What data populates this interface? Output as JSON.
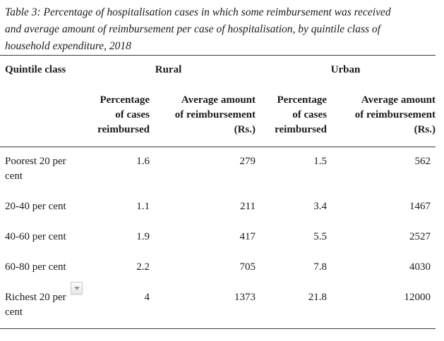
{
  "caption": {
    "lines": [
      "Table 3: Percentage of hospitalisation cases in which some reimbursement was received",
      "and average amount of reimbursement per case of hospitalisation, by quintile class of",
      "household expenditure, 2018"
    ]
  },
  "table": {
    "row_header_label": "Quintile class",
    "groups": {
      "rural": "Rural",
      "urban": "Urban"
    },
    "column_headers": [
      [
        "Percentage",
        "of cases",
        "reimbursed"
      ],
      [
        "Average amount",
        "of reimbursement",
        "(Rs.)"
      ],
      [
        "Percentage",
        "of cases",
        "reimbursed"
      ],
      [
        "Average amount",
        "of reimbursement",
        "(Rs.)"
      ]
    ],
    "rows": [
      {
        "quintile": "Poorest 20 per cent",
        "rural_pct": "1.6",
        "rural_avg": "279",
        "urban_pct": "1.5",
        "urban_avg": "562"
      },
      {
        "quintile": "20-40 per cent",
        "rural_pct": "1.1",
        "rural_avg": "211",
        "urban_pct": "3.4",
        "urban_avg": "1467"
      },
      {
        "quintile": "40-60 per cent",
        "rural_pct": "1.9",
        "rural_avg": "417",
        "urban_pct": "5.5",
        "urban_avg": "2527"
      },
      {
        "quintile": "60-80 per cent",
        "rural_pct": "2.2",
        "rural_avg": "705",
        "urban_pct": "7.8",
        "urban_avg": "4030"
      },
      {
        "quintile": "Richest 20 per cent",
        "rural_pct": "4",
        "rural_avg": "1373",
        "urban_pct": "21.8",
        "urban_avg": "12000"
      }
    ]
  },
  "colors": {
    "text": "#1b1b1b",
    "rule": "#3a3a3a"
  }
}
